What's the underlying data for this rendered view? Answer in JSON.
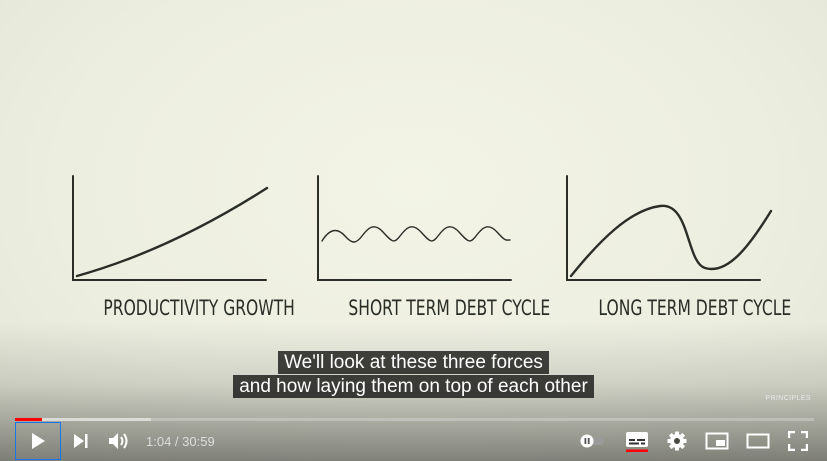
{
  "video": {
    "captions": {
      "productivity": "PRODUCTIVITY GROWTH",
      "short_term": "SHORT TERM DEBT CYCLE",
      "long_term": "LONG TERM DEBT CYCLE"
    },
    "subtitles": {
      "line1": "We'll look at these three forces",
      "line2": "and how laying them on top of each other"
    },
    "brand": "PRINCIPLES"
  },
  "player": {
    "current_time": "1:04",
    "duration": "30:59",
    "time_display": "1:04 / 30:59",
    "played_fraction": 0.034,
    "loaded_fraction": 0.17,
    "accent_color": "#ff0000",
    "icons": [
      "play-icon",
      "next-icon",
      "volume-icon",
      "autoplay-toggle-icon",
      "subtitles-icon",
      "settings-gear-icon",
      "miniplayer-icon",
      "theater-mode-icon",
      "fullscreen-icon"
    ]
  }
}
